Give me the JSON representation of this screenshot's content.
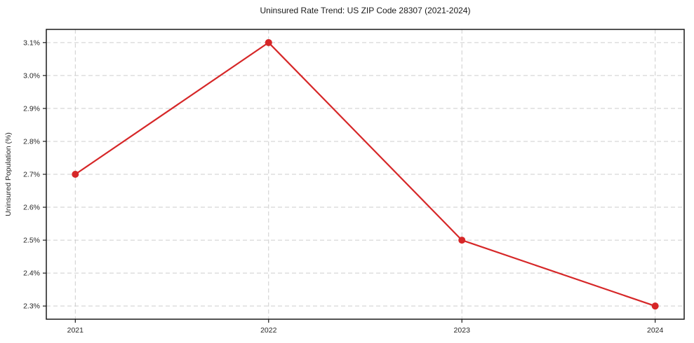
{
  "chart": {
    "title": "Uninsured Rate Trend: US ZIP Code 28307 (2021-2024)"
  },
  "chart_data": {
    "type": "line",
    "title": "Uninsured Rate Trend: US ZIP Code 28307 (2021-2024)",
    "xlabel": "",
    "ylabel": "Uninsured Population (%)",
    "x": [
      2021,
      2022,
      2023,
      2024
    ],
    "x_tick_labels": [
      "2021",
      "2022",
      "2023",
      "2024"
    ],
    "series": [
      {
        "name": "Uninsured Rate",
        "values": [
          2.7,
          3.1,
          2.5,
          2.3
        ]
      }
    ],
    "y_ticks": [
      2.3,
      2.4,
      2.5,
      2.6,
      2.7,
      2.8,
      2.9,
      3.0,
      3.1
    ],
    "y_tick_labels": [
      "2.3%",
      "2.4%",
      "2.5%",
      "2.6%",
      "2.7%",
      "2.8%",
      "2.9%",
      "3.0%",
      "3.1%"
    ],
    "xlim": [
      2020.85,
      2024.15
    ],
    "ylim": [
      2.26,
      3.14
    ],
    "grid": true,
    "grid_style": "dashed",
    "legend": "none",
    "line_color": "#d62728",
    "marker": "circle",
    "marker_radius": 5
  }
}
